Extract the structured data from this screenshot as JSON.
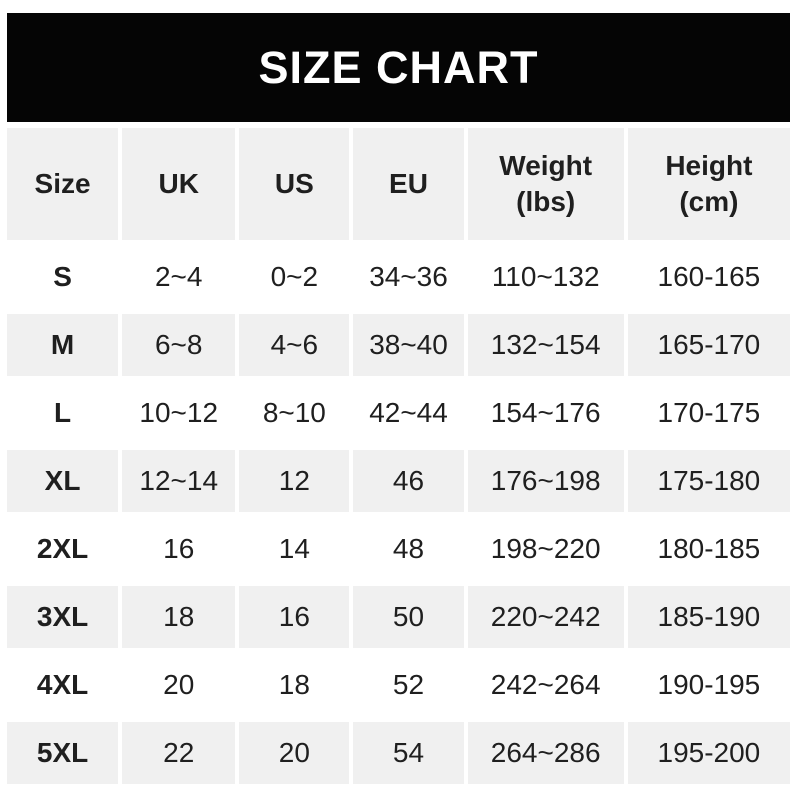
{
  "banner": {
    "title": "SIZE CHART"
  },
  "colors": {
    "banner_bg": "#050505",
    "banner_text": "#ffffff",
    "row_alt_bg": "#f0f0f0",
    "row_bg": "#ffffff",
    "text": "#1f1f1f"
  },
  "chart_data": {
    "type": "table",
    "title": "SIZE CHART",
    "columns": [
      "Size",
      "UK",
      "US",
      "EU",
      "Weight (lbs)",
      "Height (cm)"
    ],
    "rows": [
      [
        "S",
        "2~4",
        "0~2",
        "34~36",
        "110~132",
        "160-165"
      ],
      [
        "M",
        "6~8",
        "4~6",
        "38~40",
        "132~154",
        "165-170"
      ],
      [
        "L",
        "10~12",
        "8~10",
        "42~44",
        "154~176",
        "170-175"
      ],
      [
        "XL",
        "12~14",
        "12",
        "46",
        "176~198",
        "175-180"
      ],
      [
        "2XL",
        "16",
        "14",
        "48",
        "198~220",
        "180-185"
      ],
      [
        "3XL",
        "18",
        "16",
        "50",
        "220~242",
        "185-190"
      ],
      [
        "4XL",
        "20",
        "18",
        "52",
        "242~264",
        "190-195"
      ],
      [
        "5XL",
        "22",
        "20",
        "54",
        "264~286",
        "195-200"
      ]
    ],
    "layout": {
      "striping": "alternating gray/white starting with gray header row",
      "legend": "none",
      "grid": "white gutters between cells"
    }
  }
}
